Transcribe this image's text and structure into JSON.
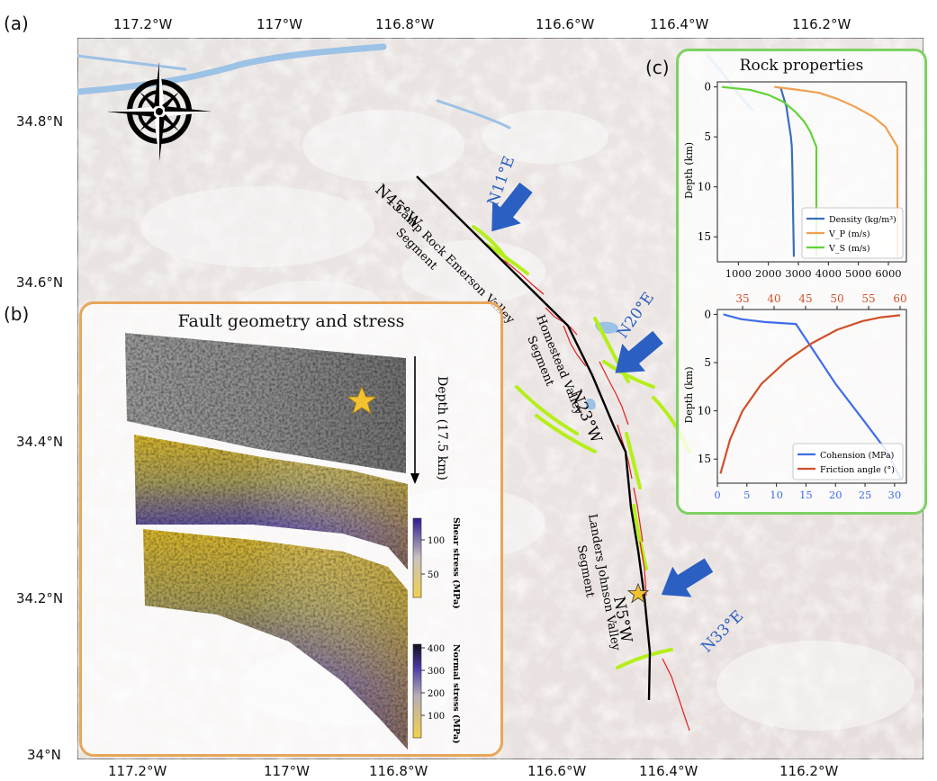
{
  "panel_labels": {
    "a": "(a)",
    "b": "(b)",
    "c": "(c)"
  },
  "map": {
    "lon_ticks": [
      "117.2°W",
      "117°W",
      "116.8°W",
      "116.6°W",
      "116.4°W",
      "116.2°W"
    ],
    "lat_ticks": [
      "34.8°N",
      "34.6°N",
      "34.4°N",
      "34.2°N",
      "34°N"
    ],
    "segments": {
      "camp_rock": [
        "Camp Rock Emerson Valley",
        "Segment"
      ],
      "homestead": [
        "Homestead Valley",
        "Segment"
      ],
      "landers": [
        "Landers Johnson Valley",
        "Segment"
      ]
    },
    "strikes": {
      "n45w": "N45°W",
      "n23w": "N23°W",
      "n5w": "N5°W"
    },
    "stress_directions": {
      "n11e": "N11°E",
      "n20e": "N20°E",
      "n33e": "N33°E"
    },
    "colors": {
      "fault_trace": "#000000",
      "secondary_faults": "#b5ef1a",
      "rupture": "#e02020",
      "arrow": "#2b5fc2",
      "water": "#9cc2e6"
    }
  },
  "fault_panel": {
    "title": "Fault geometry and stress",
    "depth_label": "Depth (17.5 km)",
    "shear_colorbar": {
      "label": "Shear stress (MPa)",
      "ticks": [
        "100",
        "50"
      ]
    },
    "normal_colorbar": {
      "label": "Normal stress (MPa)",
      "ticks": [
        "400",
        "300",
        "200",
        "100"
      ]
    },
    "colors": {
      "border": "#e8a65a",
      "high_stress": "#2c1a8f",
      "low_stress": "#d8b52a"
    }
  },
  "rock_panel": {
    "title": "Rock properties",
    "border_color": "#7ed162",
    "chart_data": [
      {
        "type": "line",
        "ylabel": "Depth (km)",
        "xlabel": "",
        "xlim": [
          300,
          6600
        ],
        "ylim": [
          17.5,
          -0.5
        ],
        "x_ticks": [
          "1000",
          "2000",
          "3000",
          "4000",
          "5000",
          "6000"
        ],
        "y_ticks": [
          "0",
          "5",
          "10",
          "15"
        ],
        "legend": "lower-right",
        "series": [
          {
            "name": "Density (kg/m³)",
            "color": "#3a6fb5",
            "points": [
              [
                2400,
                0
              ],
              [
                2450,
                0.5
              ],
              [
                2500,
                1
              ],
              [
                2600,
                2
              ],
              [
                2650,
                3
              ],
              [
                2700,
                4
              ],
              [
                2750,
                5
              ],
              [
                2780,
                6
              ],
              [
                2800,
                8
              ],
              [
                2820,
                12
              ],
              [
                2850,
                17
              ]
            ]
          },
          {
            "name": "V_P (m/s)",
            "color": "#f0a050",
            "points": [
              [
                2200,
                0
              ],
              [
                3000,
                0.3
              ],
              [
                3700,
                0.6
              ],
              [
                4300,
                1.2
              ],
              [
                4900,
                2
              ],
              [
                5500,
                3
              ],
              [
                5900,
                4
              ],
              [
                6100,
                5
              ],
              [
                6300,
                6
              ],
              [
                6300,
                10
              ],
              [
                6300,
                17
              ]
            ]
          },
          {
            "name": "V_S (m/s)",
            "color": "#62d33a",
            "points": [
              [
                450,
                0
              ],
              [
                1400,
                0.3
              ],
              [
                2000,
                0.8
              ],
              [
                2500,
                1.5
              ],
              [
                2900,
                2.5
              ],
              [
                3200,
                3.5
              ],
              [
                3400,
                4.5
              ],
              [
                3600,
                6
              ],
              [
                3600,
                10
              ],
              [
                3600,
                17
              ]
            ]
          }
        ]
      },
      {
        "type": "line",
        "ylabel": "Depth (km)",
        "xlabel": "",
        "xlim": [
          0,
          32
        ],
        "ylim": [
          17.5,
          -0.5
        ],
        "x_ticks": [
          "0",
          "5",
          "10",
          "15",
          "20",
          "25",
          "30"
        ],
        "top_x_ticks": [
          "35",
          "40",
          "45",
          "50",
          "55",
          "60"
        ],
        "top_xlim": [
          31,
          61
        ],
        "y_ticks": [
          "0",
          "5",
          "10",
          "15"
        ],
        "legend": "lower-right",
        "series": [
          {
            "name": "Cohension (MPa)",
            "axis": "bottom",
            "color": "#3f6ee8",
            "points": [
              [
                1,
                0
              ],
              [
                4,
                0.5
              ],
              [
                8,
                0.8
              ],
              [
                13.3,
                1.0
              ],
              [
                16,
                3.5
              ],
              [
                20,
                7.2
              ],
              [
                25,
                11.2
              ],
              [
                28.7,
                14.2
              ],
              [
                31,
                17
              ]
            ]
          },
          {
            "name": "Friction angle (°)",
            "axis": "top",
            "color": "#d0502a",
            "points": [
              [
                31.5,
                16.5
              ],
              [
                33,
                13
              ],
              [
                35,
                10
              ],
              [
                38,
                7.2
              ],
              [
                42,
                4.8
              ],
              [
                46,
                3
              ],
              [
                50,
                1.6
              ],
              [
                54,
                0.7
              ],
              [
                57,
                0.3
              ],
              [
                60,
                0.1
              ]
            ]
          }
        ]
      }
    ]
  }
}
